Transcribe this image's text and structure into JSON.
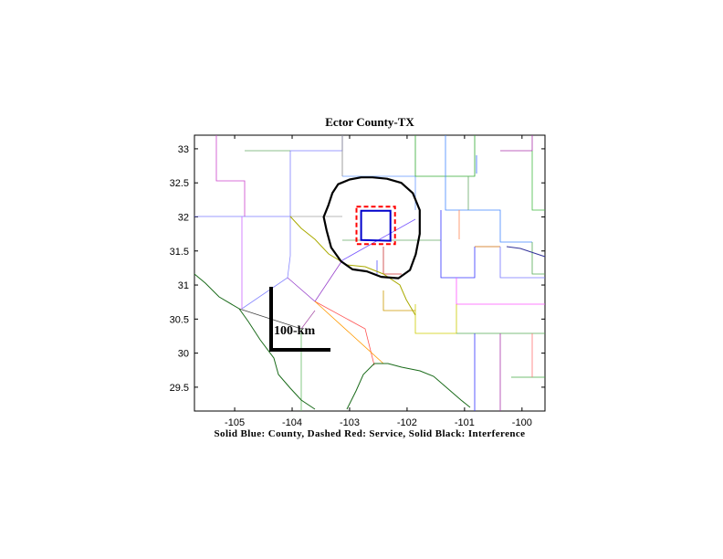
{
  "title": "Ector County-TX",
  "caption": "Solid Blue: County, Dashed Red: Service, Solid Black: Interference",
  "scale_bar": {
    "label": "100-km"
  },
  "chart_data": {
    "type": "map",
    "xlim": [
      -105.7,
      -99.6
    ],
    "ylim": [
      29.15,
      33.2
    ],
    "x_ticks": [
      -105,
      -104,
      -103,
      -102,
      -101,
      -100
    ],
    "y_ticks": [
      29.5,
      30,
      30.5,
      31,
      31.5,
      32,
      32.5,
      33
    ],
    "legend": [
      {
        "name": "County",
        "style": "solid",
        "color": "#0000cc"
      },
      {
        "name": "Service",
        "style": "dashed",
        "color": "#ff0000"
      },
      {
        "name": "Interference",
        "style": "solid",
        "color": "#000000"
      }
    ],
    "county_polygon": [
      [
        -102.8,
        32.09
      ],
      [
        -102.29,
        32.09
      ],
      [
        -102.29,
        31.65
      ],
      [
        -102.8,
        31.66
      ]
    ],
    "service_polygon": [
      [
        -102.88,
        32.15
      ],
      [
        -102.21,
        32.15
      ],
      [
        -102.21,
        31.6
      ],
      [
        -102.88,
        31.6
      ]
    ],
    "interference_contour": [
      [
        -103.37,
        32.17
      ],
      [
        -103.3,
        32.35
      ],
      [
        -103.2,
        32.48
      ],
      [
        -103.0,
        32.55
      ],
      [
        -102.8,
        32.58
      ],
      [
        -102.6,
        32.58
      ],
      [
        -102.35,
        32.56
      ],
      [
        -102.1,
        32.5
      ],
      [
        -101.9,
        32.35
      ],
      [
        -101.78,
        32.1
      ],
      [
        -101.78,
        31.75
      ],
      [
        -101.85,
        31.45
      ],
      [
        -101.95,
        31.22
      ],
      [
        -102.15,
        31.1
      ],
      [
        -102.45,
        31.12
      ],
      [
        -102.7,
        31.2
      ],
      [
        -102.95,
        31.23
      ],
      [
        -103.15,
        31.35
      ],
      [
        -103.32,
        31.55
      ],
      [
        -103.4,
        31.8
      ],
      [
        -103.45,
        32.0
      ],
      [
        -103.37,
        32.17
      ]
    ]
  }
}
